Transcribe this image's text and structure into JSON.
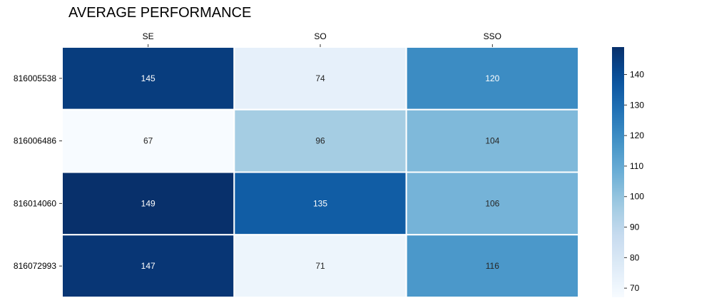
{
  "chart_data": {
    "type": "heatmap",
    "title": "AVERAGE PERFORMANCE",
    "xlabel": "",
    "ylabel": "",
    "columns": [
      "SE",
      "SO",
      "SSO"
    ],
    "rows": [
      "816005538",
      "816006486",
      "816014060",
      "816072993"
    ],
    "values": [
      [
        145,
        74,
        120
      ],
      [
        67,
        96,
        104
      ],
      [
        149,
        135,
        106
      ],
      [
        147,
        71,
        116
      ]
    ],
    "colormap": "Blues",
    "color_range": [
      67,
      149
    ],
    "colorbar_ticks": [
      70,
      80,
      90,
      100,
      110,
      120,
      130,
      140
    ],
    "annotations": true,
    "column_labels_position": "top",
    "colors": {
      "low": "#f7fbff",
      "high": "#08306b",
      "cell_border": "#ffffff"
    }
  }
}
